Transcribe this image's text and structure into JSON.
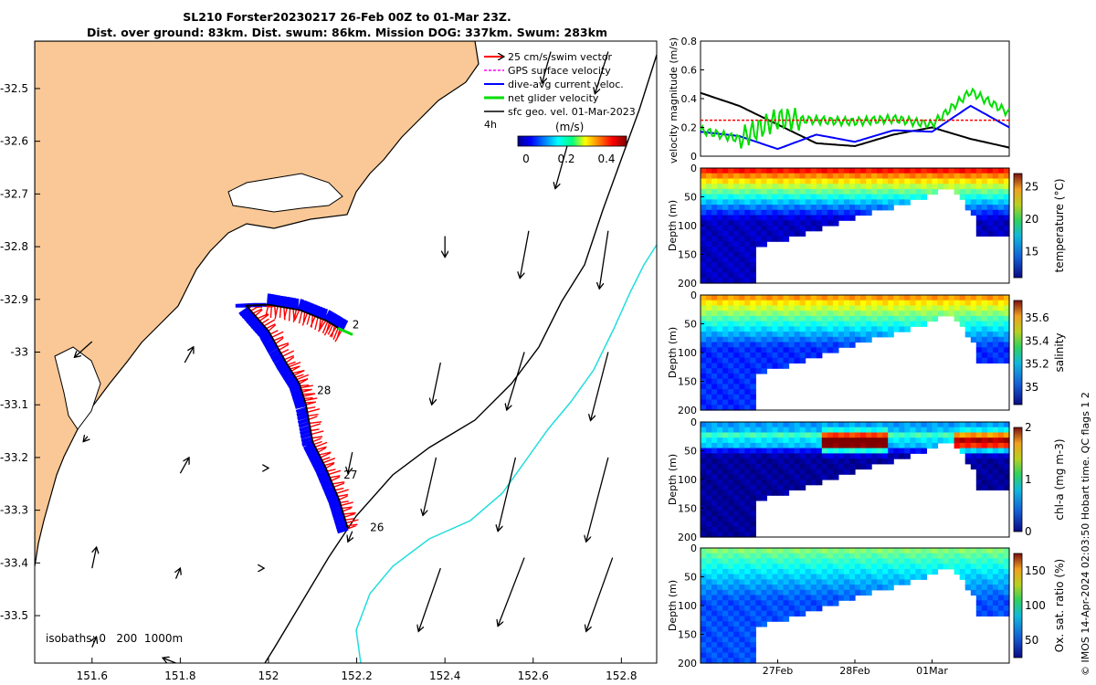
{
  "header": {
    "line1": "SL210 Forster20230217 26-Feb 00Z to 01-Mar 23Z.",
    "line2": "Dist. over ground: 83km. Dist. swum: 86km. Mission DOG: 337km. Swum: 283km"
  },
  "credit": "© IMOS 14-Apr-2024 02:03:50 Hobart time. QC flags 1  2",
  "colors": {
    "land": "#f9c896",
    "ocean": "#ffffff",
    "swim_vector": "#ff0000",
    "gps_velocity": "#ff00ff",
    "dive_avg_current": "#0000ff",
    "net_glider": "#00dd00",
    "sfc_geo_vel": "#000000",
    "isobath_200": "#000000",
    "isobath_1000": "#22dddd"
  },
  "chart_data": [
    {
      "type": "map",
      "legend_placement": "top-right",
      "legend": [
        {
          "label": "25 cm/s swim vector",
          "color": "#ff0000"
        },
        {
          "label": "GPS surface velocity",
          "color": "#ff00ff"
        },
        {
          "label": "dive-avg current veloc.",
          "color": "#0000ff"
        },
        {
          "label": "net glider velocity",
          "color": "#00dd00"
        },
        {
          "label": "sfc geo. vel. 01-Mar-2023",
          "color": "#000000"
        }
      ],
      "legend_note": "4h",
      "colorbar": {
        "label": "(m/s)",
        "ticks": [
          "0",
          "0.2",
          "0.4"
        ],
        "range": [
          0,
          0.5
        ]
      },
      "xlim": [
        151.47,
        152.88
      ],
      "ylim": [
        -33.59,
        -32.41
      ],
      "xticks": [
        151.6,
        151.8,
        152,
        152.2,
        152.4,
        152.6,
        152.8
      ],
      "xtick_labels": [
        "151.6",
        "151.8",
        "152",
        "152.2",
        "152.4",
        "152.6",
        "152.8"
      ],
      "yticks": [
        -32.5,
        -32.6,
        -32.7,
        -32.8,
        -32.9,
        -33,
        -33.1,
        -33.2,
        -33.3,
        -33.4,
        -33.5
      ],
      "ytick_labels": [
        "-32.5",
        "-32.6",
        "-32.7",
        "-32.8",
        "-32.9",
        "-33",
        "-33.1",
        "-33.2",
        "-33.3",
        "-33.4",
        "-33.5"
      ],
      "isobaths_label": "isobaths: 0   200  1000m",
      "track": [
        {
          "lon": 152.18,
          "lat": -33.335
        },
        {
          "lon": 152.16,
          "lat": -33.28
        },
        {
          "lon": 152.13,
          "lat": -33.22
        },
        {
          "lon": 152.1,
          "lat": -33.17
        },
        {
          "lon": 152.085,
          "lat": -33.1
        },
        {
          "lon": 152.07,
          "lat": -33.06
        },
        {
          "lon": 152.04,
          "lat": -33.02
        },
        {
          "lon": 152.0,
          "lat": -32.96
        },
        {
          "lon": 151.95,
          "lat": -32.912
        },
        {
          "lon": 152.0,
          "lat": -32.91
        },
        {
          "lon": 152.07,
          "lat": -32.92
        },
        {
          "lon": 152.13,
          "lat": -32.94
        },
        {
          "lon": 152.17,
          "lat": -32.96
        }
      ],
      "day_labels": [
        {
          "label": "26",
          "lon": 152.23,
          "lat": -33.34
        },
        {
          "label": "27",
          "lon": 152.17,
          "lat": -33.24
        },
        {
          "label": "28",
          "lon": 152.11,
          "lat": -33.08
        },
        {
          "label": "2",
          "lon": 152.19,
          "lat": -32.955
        }
      ],
      "sfc_geo_vel_arrows": [
        {
          "lon": 152.64,
          "lat": -32.43,
          "dlon": -0.02,
          "dlat": -0.06
        },
        {
          "lon": 152.77,
          "lat": -32.43,
          "dlon": -0.03,
          "dlat": -0.08
        },
        {
          "lon": 152.68,
          "lat": -32.6,
          "dlon": -0.03,
          "dlat": -0.09
        },
        {
          "lon": 152.4,
          "lat": -32.78,
          "dlon": 0.0,
          "dlat": -0.04
        },
        {
          "lon": 152.59,
          "lat": -32.77,
          "dlon": -0.02,
          "dlat": -0.09
        },
        {
          "lon": 152.77,
          "lat": -32.77,
          "dlon": -0.02,
          "dlat": -0.11
        },
        {
          "lon": 151.6,
          "lat": -32.98,
          "dlon": -0.04,
          "dlat": -0.03
        },
        {
          "lon": 151.81,
          "lat": -33.02,
          "dlon": 0.02,
          "dlat": 0.03
        },
        {
          "lon": 152.39,
          "lat": -33.02,
          "dlon": -0.02,
          "dlat": -0.08
        },
        {
          "lon": 152.58,
          "lat": -33.0,
          "dlon": -0.04,
          "dlat": -0.11
        },
        {
          "lon": 152.77,
          "lat": -33.0,
          "dlon": -0.04,
          "dlat": -0.13
        },
        {
          "lon": 151.59,
          "lat": -33.16,
          "dlon": -0.01,
          "dlat": -0.01
        },
        {
          "lon": 151.8,
          "lat": -33.23,
          "dlon": 0.02,
          "dlat": 0.03
        },
        {
          "lon": 152.0,
          "lat": -33.22,
          "dlon": 0.0,
          "dlat": 0.0
        },
        {
          "lon": 152.19,
          "lat": -33.19,
          "dlon": -0.01,
          "dlat": -0.04
        },
        {
          "lon": 152.38,
          "lat": -33.2,
          "dlon": -0.03,
          "dlat": -0.11
        },
        {
          "lon": 152.56,
          "lat": -33.2,
          "dlon": -0.04,
          "dlat": -0.14
        },
        {
          "lon": 152.77,
          "lat": -33.2,
          "dlon": -0.05,
          "dlat": -0.16
        },
        {
          "lon": 151.6,
          "lat": -33.41,
          "dlon": 0.01,
          "dlat": 0.04
        },
        {
          "lon": 151.79,
          "lat": -33.43,
          "dlon": 0.01,
          "dlat": 0.02
        },
        {
          "lon": 151.99,
          "lat": -33.41,
          "dlon": 0.0,
          "dlat": 0.0
        },
        {
          "lon": 152.19,
          "lat": -33.34,
          "dlon": -0.01,
          "dlat": -0.02
        },
        {
          "lon": 152.39,
          "lat": -33.41,
          "dlon": -0.05,
          "dlat": -0.12
        },
        {
          "lon": 152.58,
          "lat": -33.39,
          "dlon": -0.06,
          "dlat": -0.13
        },
        {
          "lon": 152.78,
          "lat": -33.39,
          "dlon": -0.06,
          "dlat": -0.14
        },
        {
          "lon": 151.6,
          "lat": -33.56,
          "dlon": 0.01,
          "dlat": 0.02
        },
        {
          "lon": 151.79,
          "lat": -33.59,
          "dlon": -0.03,
          "dlat": 0.01
        }
      ]
    },
    {
      "type": "line",
      "ylabel": "velocity magnitude (m/s)",
      "ylim": [
        0,
        0.8
      ],
      "yticks": [
        "0",
        "0.2",
        "0.4",
        "0.6",
        "0.8"
      ],
      "series": [
        {
          "color": "#000000",
          "x": [
            0,
            0.5,
            1,
            1.5,
            2,
            2.5,
            3,
            3.5,
            4
          ],
          "y": [
            0.44,
            0.35,
            0.22,
            0.09,
            0.07,
            0.15,
            0.2,
            0.12,
            0.06
          ]
        },
        {
          "color": "#0000ff",
          "x": [
            0,
            0.5,
            1,
            1.5,
            2,
            2.5,
            3,
            3.5,
            4
          ],
          "y": [
            0.17,
            0.14,
            0.05,
            0.15,
            0.1,
            0.18,
            0.17,
            0.35,
            0.2
          ]
        },
        {
          "color": "#00dd00",
          "x": [
            0,
            0.5,
            1,
            1.5,
            2,
            2.5,
            3,
            3.5,
            4
          ],
          "y": [
            0.18,
            0.12,
            0.26,
            0.25,
            0.24,
            0.26,
            0.22,
            0.45,
            0.3
          ]
        },
        {
          "color": "#ff0000",
          "x": [
            0,
            4
          ],
          "y": [
            0.25,
            0.25
          ]
        }
      ]
    },
    {
      "type": "heatmap",
      "ylabel": "Depth (m)",
      "yticks": [
        "0",
        "50",
        "100",
        "150",
        "200"
      ],
      "ylim": [
        200,
        0
      ],
      "colorbar_label": "temperature (°C)",
      "colorbar_ticks": [
        "15",
        "20",
        "25"
      ],
      "range": [
        11,
        27
      ],
      "surface": 26,
      "bottom": 12
    },
    {
      "type": "heatmap",
      "ylabel": "Depth (m)",
      "yticks": [
        "0",
        "50",
        "100",
        "150",
        "200"
      ],
      "ylim": [
        200,
        0
      ],
      "colorbar_label": "salinity",
      "colorbar_ticks": [
        "35",
        "35.2",
        "35.4",
        "35.6"
      ],
      "range": [
        34.85,
        35.75
      ],
      "surface": 35.55,
      "bottom": 35.0
    },
    {
      "type": "heatmap",
      "ylabel": "Depth (m)",
      "yticks": [
        "0",
        "50",
        "100",
        "150",
        "200"
      ],
      "ylim": [
        200,
        0
      ],
      "colorbar_label": "chl-a (mg m-3)",
      "colorbar_ticks": [
        "0",
        "1",
        "2"
      ],
      "range": [
        0,
        2
      ],
      "surface": 0.8,
      "bottom": 0.05
    },
    {
      "type": "heatmap",
      "ylabel": "Depth (m)",
      "yticks": [
        "0",
        "50",
        "100",
        "150",
        "200"
      ],
      "ylim": [
        200,
        0
      ],
      "colorbar_label": "Ox. sat. ratio (%)",
      "colorbar_ticks": [
        "50",
        "100",
        "150"
      ],
      "range": [
        25,
        175
      ],
      "surface": 105,
      "bottom": 55,
      "xtick_labels": [
        "27Feb",
        "28Feb",
        "01Mar"
      ]
    }
  ]
}
